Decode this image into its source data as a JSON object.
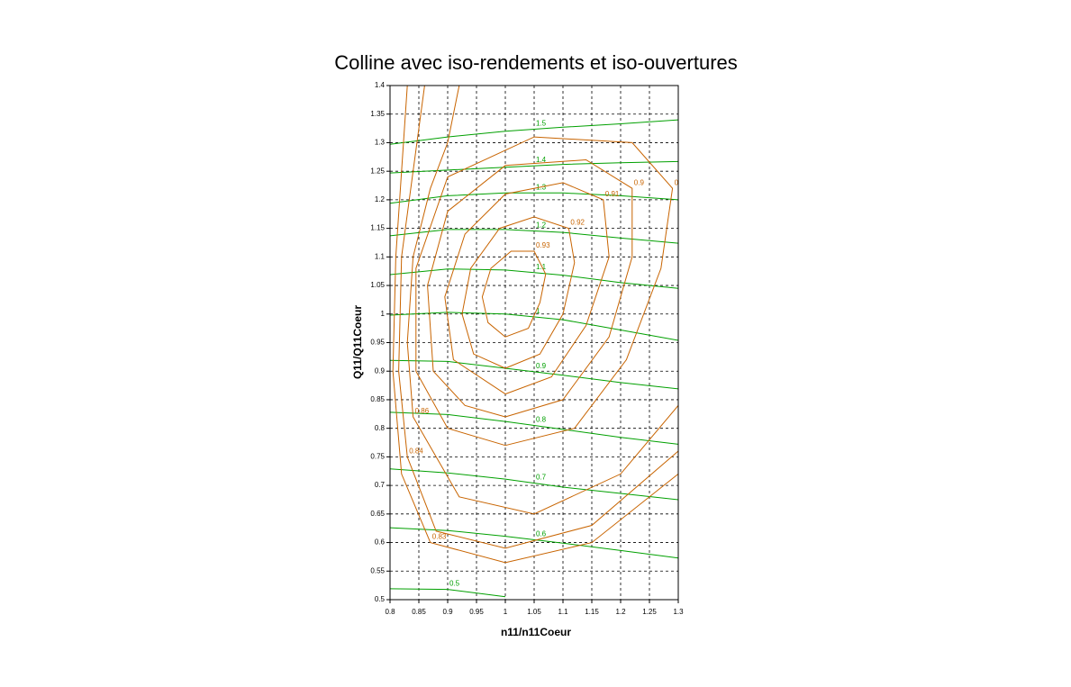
{
  "chart_data": {
    "type": "contour",
    "title": "Colline avec iso-rendements et iso-ouvertures",
    "xlabel": "n11/n11Coeur",
    "ylabel": "Q11/Q11Coeur",
    "xlim": [
      0.8,
      1.3
    ],
    "ylim": [
      0.5,
      1.4
    ],
    "xticks": [
      0.8,
      0.85,
      0.9,
      0.95,
      1,
      1.05,
      1.1,
      1.15,
      1.2,
      1.25,
      1.3
    ],
    "yticks": [
      0.5,
      0.55,
      0.6,
      0.65,
      0.7,
      0.75,
      0.8,
      0.85,
      0.9,
      0.95,
      1,
      1.05,
      1.1,
      1.15,
      1.2,
      1.25,
      1.3,
      1.35,
      1.4
    ],
    "grid": true,
    "series": [
      {
        "name": "1.5",
        "color": "#00a000",
        "x": [
          0.8,
          0.9,
          1.0,
          1.1,
          1.2,
          1.3
        ],
        "y": [
          1.297,
          1.31,
          1.32,
          1.327,
          1.333,
          1.34
        ]
      },
      {
        "name": "1.4",
        "color": "#00a000",
        "x": [
          0.8,
          0.9,
          1.0,
          1.1,
          1.2,
          1.3
        ],
        "y": [
          1.247,
          1.252,
          1.257,
          1.262,
          1.265,
          1.267
        ]
      },
      {
        "name": "1.3",
        "color": "#00a000",
        "x": [
          0.8,
          0.9,
          1.0,
          1.1,
          1.2,
          1.3
        ],
        "y": [
          1.194,
          1.207,
          1.212,
          1.212,
          1.207,
          1.2
        ]
      },
      {
        "name": "1.2",
        "color": "#00a000",
        "x": [
          0.8,
          0.9,
          1.0,
          1.1,
          1.2,
          1.3
        ],
        "y": [
          1.137,
          1.148,
          1.148,
          1.143,
          1.133,
          1.124
        ]
      },
      {
        "name": "1.1",
        "color": "#00a000",
        "x": [
          0.8,
          0.9,
          1.0,
          1.1,
          1.2,
          1.3
        ],
        "y": [
          1.069,
          1.079,
          1.077,
          1.068,
          1.055,
          1.045
        ]
      },
      {
        "name": "1",
        "color": "#00a000",
        "x": [
          0.8,
          0.9,
          1.0,
          1.1,
          1.2,
          1.3
        ],
        "y": [
          0.998,
          1.003,
          1.0,
          0.99,
          0.972,
          0.954
        ]
      },
      {
        "name": "0.9",
        "color": "#00a000",
        "x": [
          0.8,
          0.9,
          1.0,
          1.1,
          1.2,
          1.3
        ],
        "y": [
          0.919,
          0.917,
          0.905,
          0.893,
          0.88,
          0.869
        ]
      },
      {
        "name": "0.8",
        "color": "#00a000",
        "x": [
          0.8,
          0.9,
          1.0,
          1.1,
          1.2,
          1.3
        ],
        "y": [
          0.828,
          0.824,
          0.812,
          0.798,
          0.784,
          0.772
        ]
      },
      {
        "name": "0.7",
        "color": "#00a000",
        "x": [
          0.8,
          0.9,
          1.0,
          1.1,
          1.2,
          1.3
        ],
        "y": [
          0.729,
          0.722,
          0.711,
          0.697,
          0.686,
          0.675
        ]
      },
      {
        "name": "0.6",
        "color": "#00a000",
        "x": [
          0.8,
          0.9,
          1.0,
          1.1,
          1.2,
          1.3
        ],
        "y": [
          0.626,
          0.621,
          0.611,
          0.599,
          0.586,
          0.573
        ]
      },
      {
        "name": "0.5",
        "color": "#00a000",
        "x": [
          0.8,
          0.9,
          1.0
        ],
        "y": [
          0.519,
          0.518,
          0.505
        ]
      },
      {
        "name": "0.93",
        "color": "#c86400",
        "x": [
          1.0,
          1.04,
          1.06,
          1.07,
          1.05,
          1.01,
          0.975,
          0.96,
          0.97,
          1.0
        ],
        "y": [
          0.96,
          0.975,
          1.02,
          1.07,
          1.11,
          1.11,
          1.08,
          1.03,
          0.985,
          0.96
        ]
      },
      {
        "name": "0.92",
        "color": "#c86400",
        "x": [
          1.0,
          1.06,
          1.1,
          1.12,
          1.11,
          1.05,
          0.99,
          0.94,
          0.925,
          0.945,
          1.0
        ],
        "y": [
          0.905,
          0.93,
          1.0,
          1.09,
          1.15,
          1.17,
          1.15,
          1.08,
          1.0,
          0.93,
          0.905
        ]
      },
      {
        "name": "0.91",
        "color": "#c86400",
        "x": [
          1.0,
          1.08,
          1.14,
          1.18,
          1.17,
          1.1,
          1.0,
          0.93,
          0.895,
          0.91,
          1.0
        ],
        "y": [
          0.86,
          0.89,
          0.98,
          1.1,
          1.2,
          1.23,
          1.21,
          1.14,
          1.03,
          0.92,
          0.86
        ]
      },
      {
        "name": "0.9",
        "color": "#c86400",
        "x": [
          1.0,
          1.1,
          1.18,
          1.22,
          1.22,
          1.14,
          1.0,
          0.9,
          0.865,
          0.875,
          0.93,
          1.0
        ],
        "y": [
          0.82,
          0.85,
          0.96,
          1.1,
          1.22,
          1.27,
          1.26,
          1.18,
          1.05,
          0.9,
          0.84,
          0.82
        ]
      },
      {
        "name": "0.89",
        "color": "#c86400",
        "x": [
          1.0,
          1.12,
          1.21,
          1.27,
          1.29,
          1.22,
          1.05,
          0.9,
          0.845,
          0.845,
          0.9,
          1.0
        ],
        "y": [
          0.77,
          0.8,
          0.92,
          1.08,
          1.22,
          1.3,
          1.31,
          1.24,
          1.08,
          0.9,
          0.8,
          0.77
        ]
      },
      {
        "name": "0.86",
        "color": "#c86400",
        "x": [
          1.3,
          1.2,
          1.05,
          0.92,
          0.84,
          0.83,
          0.84,
          0.87,
          0.9,
          0.92
        ],
        "y": [
          0.84,
          0.72,
          0.65,
          0.68,
          0.82,
          0.95,
          1.1,
          1.22,
          1.3,
          1.4
        ]
      },
      {
        "name": "0.84",
        "color": "#c86400",
        "x": [
          1.3,
          1.15,
          1.0,
          0.88,
          0.83,
          0.815,
          0.82,
          0.84,
          0.86
        ],
        "y": [
          0.76,
          0.63,
          0.59,
          0.62,
          0.75,
          0.9,
          1.1,
          1.25,
          1.4
        ]
      },
      {
        "name": "0.83",
        "color": "#c86400",
        "x": [
          1.3,
          1.15,
          1.0,
          0.87,
          0.82,
          0.805,
          0.81,
          0.83
        ],
        "y": [
          0.72,
          0.6,
          0.565,
          0.6,
          0.72,
          0.9,
          1.1,
          1.4
        ]
      }
    ]
  }
}
